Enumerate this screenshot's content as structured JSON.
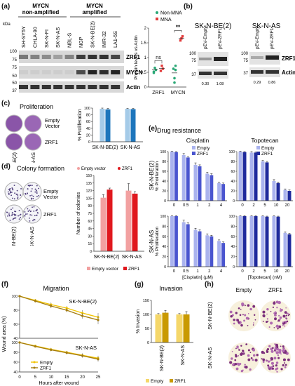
{
  "panels": {
    "a": "(a)",
    "b": "(b)",
    "c": "(c)",
    "d": "(d)",
    "e": "(e)",
    "f": "(f)",
    "g": "(g)",
    "h": "(h)"
  },
  "panel_a": {
    "header_left": "MYCN\nnon-amplified",
    "header_right": "MYCN\namplified",
    "kda": "kDa",
    "cell_lines": [
      "SH-SY5Y",
      "CHLA-90",
      "SK-N-FI",
      "SK-N-AS",
      "NBL-S",
      "NGP",
      "SK-N-BE(2)",
      "IMR-32",
      "LA1-5S"
    ],
    "markers_zrf1": [
      "100",
      "75"
    ],
    "markers_mycn": [
      "75",
      "50"
    ],
    "markers_actin": [
      "50",
      "37"
    ],
    "band_labels": [
      "ZRF1",
      "MYCN",
      "Actin"
    ]
  },
  "panel_b": {
    "left_title": "SK-N-BE(2)",
    "right_title": "SK-N-AS",
    "lanes": [
      "pEV-Empty",
      "pEV-ZRF1"
    ],
    "markers": [
      "100",
      "75",
      "37"
    ],
    "band_labels": [
      "ZRF1",
      "Actin"
    ],
    "quant_left": [
      "0.30",
      "1.08"
    ],
    "quant_right": [
      "0.29",
      "0.86"
    ]
  },
  "panel_c": {
    "title": "Proliferation",
    "row_labels": [
      "Empty\nVector",
      "ZRF1"
    ],
    "col_labels": [
      "SK-N-BE(2)",
      "SK-N-AS"
    ]
  },
  "panel_d": {
    "title": "Colony formation",
    "row_labels": [
      "Empty\nVector",
      "ZRF1"
    ],
    "col_labels": [
      "SK-N-BE(2)",
      "SK-N-AS"
    ]
  },
  "panel_f": {
    "title": "Migration"
  },
  "panel_g": {
    "title": "Invasion"
  },
  "panel_h": {
    "col_labels": [
      "Empty",
      "ZRF1"
    ],
    "row_labels": [
      "SK-N-BE(2)",
      "SK-N-AS"
    ]
  },
  "chart_data": [
    {
      "id": "a-dot",
      "type": "scatter",
      "categories": [
        "ZRF1",
        "MYCN"
      ],
      "ylabel": "Protein levels vs Actin",
      "ylim": [
        0,
        2
      ],
      "yticks": [
        "0",
        "0.5",
        "1",
        "1.5",
        "2"
      ],
      "series": [
        {
          "name": "Non-MNA",
          "color": "#2aa876",
          "points": [
            [
              0,
              0.48
            ],
            [
              0,
              0.65
            ],
            [
              0,
              0.58
            ],
            [
              0,
              0.52
            ],
            [
              1,
              0.3
            ],
            [
              1,
              0.58
            ],
            [
              1,
              0.62
            ],
            [
              1,
              0.15
            ],
            [
              1,
              0.72
            ]
          ]
        },
        {
          "name": "MNA",
          "color": "#e23a3a",
          "points": [
            [
              0,
              0.55
            ],
            [
              0,
              0.72
            ],
            [
              0,
              0.62
            ],
            [
              1,
              1.58
            ],
            [
              1,
              1.65
            ],
            [
              1,
              1.72
            ]
          ]
        }
      ],
      "means": [
        [
          0,
          0.58
        ],
        [
          0,
          0.63
        ],
        [
          1,
          0.48
        ],
        [
          1,
          1.65
        ]
      ],
      "annotations": [
        "ns",
        "**"
      ]
    },
    {
      "id": "c-bar",
      "type": "bar",
      "categories": [
        "SK-N-BE(2)",
        "SK-N-AS"
      ],
      "ylabel": "% Proliferation",
      "ylim": [
        0,
        100
      ],
      "yticks": [
        "0",
        "20",
        "40",
        "60",
        "80",
        "100"
      ],
      "series": [
        {
          "name": "Empty",
          "color": "#a5cbe8",
          "values": [
            98,
            98
          ],
          "err": [
            2,
            1
          ]
        },
        {
          "name": "ZRF1",
          "color": "#1d76bc",
          "values": [
            96,
            97
          ],
          "err": [
            3,
            2
          ]
        }
      ]
    },
    {
      "id": "d-bar",
      "type": "bar",
      "categories": [
        "SK-N-BE(2)",
        "SK-N-AS"
      ],
      "ylabel": "Number of colonies",
      "ylim": [
        0,
        150
      ],
      "yticks": [
        "0",
        "15",
        "30",
        "45",
        "60",
        "75",
        "90",
        "105",
        "120",
        "135",
        "150"
      ],
      "legend_top": [
        "Empty vector",
        "ZRF1"
      ],
      "legend_bottom": [
        "Empty vector",
        "ZRF1"
      ],
      "series": [
        {
          "name": "Empty vector",
          "color": "#f2a1a1",
          "values": [
            106,
            120
          ],
          "err": [
            6,
            14
          ]
        },
        {
          "name": "ZRF1",
          "color": "#e0181e",
          "values": [
            122,
            114
          ],
          "err": [
            3,
            4
          ]
        }
      ]
    },
    {
      "id": "e-cis-be",
      "type": "bar",
      "title": "Cisplatin",
      "categories": [
        "0",
        "0.5",
        "1",
        "2",
        "4"
      ],
      "ylabel": "% Proliferation",
      "ylim": [
        0,
        100
      ],
      "yticks": [
        "0",
        "20",
        "40",
        "60",
        "80",
        "100"
      ],
      "series": [
        {
          "name": "Empty",
          "color": "#aab3ee",
          "values": [
            100,
            93,
            73,
            55,
            36
          ],
          "err": [
            1,
            3,
            4,
            3,
            2
          ]
        },
        {
          "name": "ZRF1",
          "color": "#4a55cf",
          "values": [
            99,
            88,
            70,
            52,
            34
          ],
          "err": [
            1,
            2,
            3,
            3,
            2
          ]
        }
      ]
    },
    {
      "id": "e-top-be",
      "type": "bar",
      "title": "Topotecan",
      "categories": [
        "0",
        "2",
        "5",
        "10",
        "20"
      ],
      "ylim": [
        0,
        100
      ],
      "yticks": [
        "0",
        "20",
        "40",
        "60",
        "80",
        "100"
      ],
      "series": [
        {
          "name": "Empty",
          "color": "#aab3ee",
          "values": [
            100,
            98,
            80,
            40,
            22
          ],
          "err": [
            1,
            2,
            2,
            3,
            2
          ]
        },
        {
          "name": "ZRF1",
          "color": "#1f2a9c",
          "values": [
            99,
            98,
            78,
            36,
            20
          ],
          "err": [
            1,
            1,
            2,
            2,
            2
          ]
        }
      ]
    },
    {
      "id": "e-cis-as",
      "type": "bar",
      "categories": [
        "0",
        "0.5",
        "1",
        "2",
        "4"
      ],
      "xlabel": "[Cisplatin] (µM)",
      "ylabel": "% Proliferation",
      "ylim": [
        0,
        100
      ],
      "yticks": [
        "0",
        "20",
        "40",
        "60",
        "80",
        "100"
      ],
      "series": [
        {
          "name": "Empty",
          "color": "#aab3ee",
          "values": [
            100,
            88,
            73,
            62,
            51
          ],
          "err": [
            1,
            4,
            3,
            3,
            2
          ]
        },
        {
          "name": "ZRF1",
          "color": "#4a55cf",
          "values": [
            100,
            84,
            70,
            60,
            47
          ],
          "err": [
            1,
            3,
            3,
            2,
            2
          ]
        }
      ]
    },
    {
      "id": "e-top-as",
      "type": "bar",
      "categories": [
        "0",
        "2",
        "5",
        "10",
        "20"
      ],
      "xlabel": "[Topotecan] (nM)",
      "ylim": [
        0,
        100
      ],
      "yticks": [
        "0",
        "20",
        "40",
        "60",
        "80",
        "100"
      ],
      "series": [
        {
          "name": "Empty",
          "color": "#aab3ee",
          "values": [
            100,
            100,
            100,
            100,
            67
          ],
          "err": [
            1,
            1,
            1,
            1,
            2
          ]
        },
        {
          "name": "ZRF1",
          "color": "#1f2a9c",
          "values": [
            100,
            100,
            99,
            99,
            64
          ],
          "err": [
            1,
            1,
            1,
            1,
            2
          ]
        }
      ]
    },
    {
      "id": "f-be",
      "type": "line",
      "title": "SK-N-BE(2)",
      "x": [
        0,
        5,
        10,
        15,
        20,
        25
      ],
      "ylabel": "Wound area (%)",
      "ylim": [
        0,
        100
      ],
      "yticks": [
        "0",
        "20",
        "40",
        "60",
        "80",
        "100"
      ],
      "series": [
        {
          "name": "Empty",
          "color": "#f2c400",
          "values": [
            100,
            94,
            88,
            83,
            76,
            70
          ],
          "err": [
            1,
            2,
            3,
            3,
            4,
            6
          ]
        },
        {
          "name": "ZRF1",
          "color": "#a57d10",
          "values": [
            100,
            93,
            86,
            80,
            72,
            66
          ],
          "err": [
            1,
            2,
            3,
            3,
            4,
            6
          ]
        }
      ]
    },
    {
      "id": "f-as",
      "type": "line",
      "title": "SK-N-AS",
      "x": [
        0,
        5,
        10,
        15,
        20,
        25
      ],
      "xticks": [
        "0",
        "5",
        "10",
        "15",
        "20",
        "25"
      ],
      "xlabel": "Hours after wound",
      "ylim": [
        0,
        100
      ],
      "yticks": [
        "0",
        "20",
        "40",
        "60",
        "80",
        "100"
      ],
      "series": [
        {
          "name": "Empty",
          "color": "#f2c400",
          "values": [
            100,
            93,
            86,
            80,
            74,
            68
          ],
          "err": [
            1,
            2,
            3,
            3,
            4,
            5
          ]
        },
        {
          "name": "ZRF1",
          "color": "#a57d10",
          "values": [
            100,
            92,
            85,
            79,
            73,
            66
          ],
          "err": [
            1,
            2,
            3,
            3,
            4,
            5
          ]
        }
      ]
    },
    {
      "id": "g-bar",
      "type": "bar",
      "categories": [
        "SK-N-BE(2)",
        "SK-N-AS"
      ],
      "ylabel": "% Invasion",
      "ylim": [
        0,
        150
      ],
      "yticks": [
        "0",
        "50",
        "100",
        "150"
      ],
      "series": [
        {
          "name": "Empty",
          "color": "#f5d76a",
          "values": [
            100,
            100
          ],
          "err": [
            3,
            3
          ]
        },
        {
          "name": "ZRF1",
          "color": "#c99a00",
          "values": [
            106,
            100
          ],
          "err": [
            8,
            10
          ]
        }
      ]
    }
  ]
}
